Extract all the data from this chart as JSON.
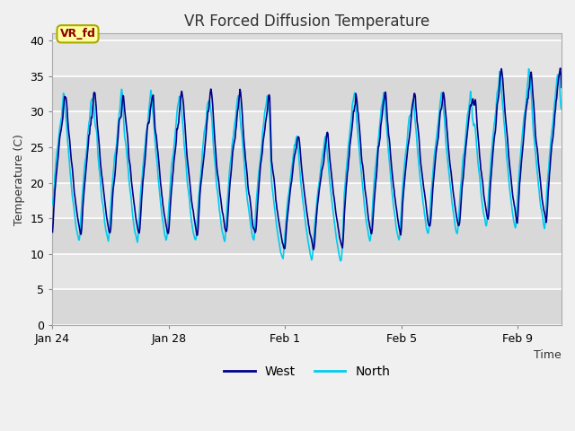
{
  "title": "VR Forced Diffusion Temperature",
  "xlabel": "Time",
  "ylabel": "Temperature (C)",
  "annotation_text": "VR_fd",
  "annotation_color": "#8B0000",
  "annotation_bg": "#FFFFA0",
  "annotation_border": "#AAAA00",
  "west_color": "#00008B",
  "north_color": "#00CCEE",
  "plot_bg_color": "#DCDCDC",
  "fig_bg_color": "#F0F0F0",
  "ylim": [
    0,
    41
  ],
  "yticks": [
    0,
    5,
    10,
    15,
    20,
    25,
    30,
    35,
    40
  ],
  "n_days": 17.5,
  "legend_west": "West",
  "legend_north": "North",
  "title_fontsize": 12,
  "label_fontsize": 9,
  "tick_fontsize": 9,
  "tick_positions": [
    0,
    4,
    8,
    12,
    16
  ],
  "tick_labels": [
    "Jan 24",
    "Jan 28",
    "Feb 1",
    "Feb 5",
    "Feb 9"
  ]
}
